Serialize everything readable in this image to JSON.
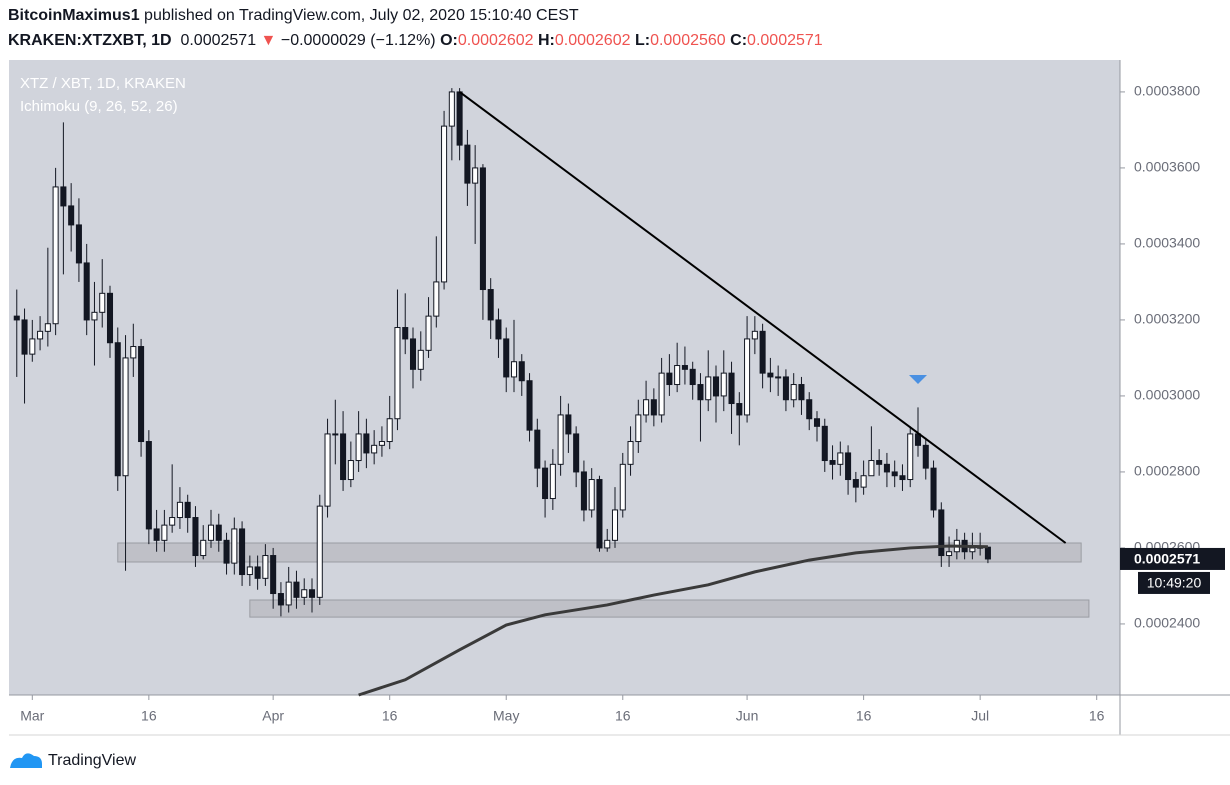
{
  "header": {
    "author": "BitcoinMaximus1",
    "published": "published on TradingView.com, July 02, 2020 15:10:40 CEST",
    "symbol": "KRAKEN:XTZXBT, 1D",
    "change": "−0.0000029 (−1.12%)",
    "ohlc": [
      {
        "label": "O:",
        "value": "0.0002602"
      },
      {
        "label": "H:",
        "value": "0.0002602"
      },
      {
        "label": "L:",
        "value": "0.0002560"
      },
      {
        "label": "C:",
        "value": "0.0002571"
      }
    ]
  },
  "footer": {
    "brand": "TradingView"
  },
  "chart_data": {
    "type": "candlestick",
    "title": "XTZ / XBT, 1D, KRAKEN",
    "subtitle": "Ichimoku (9, 26, 52, 26)",
    "up_color": "#ffffff",
    "down_color": "#131722",
    "background": "#d1d4dc",
    "x": [
      "2020-02-28",
      "2020-02-29",
      "2020-03-01",
      "2020-03-02",
      "2020-03-03",
      "2020-03-04",
      "2020-03-05",
      "2020-03-06",
      "2020-03-07",
      "2020-03-08",
      "2020-03-09",
      "2020-03-10",
      "2020-03-11",
      "2020-03-12",
      "2020-03-13",
      "2020-03-14",
      "2020-03-15",
      "2020-03-16",
      "2020-03-17",
      "2020-03-18",
      "2020-03-19",
      "2020-03-20",
      "2020-03-21",
      "2020-03-22",
      "2020-03-23",
      "2020-03-24",
      "2020-03-25",
      "2020-03-26",
      "2020-03-27",
      "2020-03-28",
      "2020-03-29",
      "2020-03-30",
      "2020-03-31",
      "2020-04-01",
      "2020-04-02",
      "2020-04-03",
      "2020-04-04",
      "2020-04-05",
      "2020-04-06",
      "2020-04-07",
      "2020-04-08",
      "2020-04-09",
      "2020-04-10",
      "2020-04-11",
      "2020-04-12",
      "2020-04-13",
      "2020-04-14",
      "2020-04-15",
      "2020-04-16",
      "2020-04-17",
      "2020-04-18",
      "2020-04-19",
      "2020-04-20",
      "2020-04-21",
      "2020-04-22",
      "2020-04-23",
      "2020-04-24",
      "2020-04-25",
      "2020-04-26",
      "2020-04-27",
      "2020-04-28",
      "2020-04-29",
      "2020-04-30",
      "2020-05-01",
      "2020-05-02",
      "2020-05-03",
      "2020-05-04",
      "2020-05-05",
      "2020-05-06",
      "2020-05-07",
      "2020-05-08",
      "2020-05-09",
      "2020-05-10",
      "2020-05-11",
      "2020-05-12",
      "2020-05-13",
      "2020-05-14",
      "2020-05-15",
      "2020-05-16",
      "2020-05-17",
      "2020-05-18",
      "2020-05-19",
      "2020-05-20",
      "2020-05-21",
      "2020-05-22",
      "2020-05-23",
      "2020-05-24",
      "2020-05-25",
      "2020-05-26",
      "2020-05-27",
      "2020-05-28",
      "2020-05-29",
      "2020-05-30",
      "2020-05-31",
      "2020-06-01",
      "2020-06-02",
      "2020-06-03",
      "2020-06-04",
      "2020-06-05",
      "2020-06-06",
      "2020-06-07",
      "2020-06-08",
      "2020-06-09",
      "2020-06-10",
      "2020-06-11",
      "2020-06-12",
      "2020-06-13",
      "2020-06-14",
      "2020-06-15",
      "2020-06-16",
      "2020-06-17",
      "2020-06-18",
      "2020-06-19",
      "2020-06-20",
      "2020-06-21",
      "2020-06-22",
      "2020-06-23",
      "2020-06-24",
      "2020-06-25",
      "2020-06-26",
      "2020-06-27",
      "2020-06-28",
      "2020-06-29",
      "2020-06-30",
      "2020-07-01",
      "2020-07-02"
    ],
    "open": [
      0.000321,
      0.00032,
      0.000311,
      0.000315,
      0.000317,
      0.000319,
      0.000355,
      0.00035,
      0.000345,
      0.000335,
      0.00032,
      0.000322,
      0.000327,
      0.000314,
      0.000279,
      0.00031,
      0.000313,
      0.000288,
      0.000265,
      0.000262,
      0.000266,
      0.000268,
      0.000272,
      0.000268,
      0.000258,
      0.000262,
      0.000266,
      0.000262,
      0.000256,
      0.000265,
      0.000253,
      0.000255,
      0.000252,
      0.000258,
      0.000248,
      0.000245,
      0.000251,
      0.000247,
      0.000249,
      0.000247,
      0.000271,
      0.00029,
      0.00029,
      0.000278,
      0.000283,
      0.00029,
      0.000285,
      0.000287,
      0.000288,
      0.000294,
      0.000318,
      0.000315,
      0.000307,
      0.000312,
      0.000321,
      0.00033,
      0.000371,
      0.00038,
      0.000366,
      0.000356,
      0.00036,
      0.000328,
      0.00032,
      0.000315,
      0.000305,
      0.000309,
      0.000304,
      0.000291,
      0.000281,
      0.000273,
      0.000282,
      0.000295,
      0.00029,
      0.00028,
      0.00027,
      0.000278,
      0.00026,
      0.000262,
      0.00027,
      0.000282,
      0.000288,
      0.000295,
      0.000299,
      0.000295,
      0.000306,
      0.000303,
      0.000308,
      0.000307,
      0.000303,
      0.000299,
      0.000305,
      0.0003,
      0.000306,
      0.000298,
      0.000295,
      0.000315,
      0.000317,
      0.000306,
      0.000305,
      0.000305,
      0.000299,
      0.000303,
      0.000299,
      0.000294,
      0.000292,
      0.000283,
      0.000282,
      0.000285,
      0.000278,
      0.000276,
      0.000279,
      0.000283,
      0.000282,
      0.00028,
      0.000279,
      0.000278,
      0.00029,
      0.000287,
      0.000281,
      0.00027,
      0.000258,
      0.000259,
      0.000262,
      0.000259,
      0.00026,
      0.0002602
    ],
    "high": [
      0.000328,
      0.000323,
      0.00032,
      0.000321,
      0.000339,
      0.00036,
      0.000372,
      0.000356,
      0.000352,
      0.00034,
      0.00033,
      0.000336,
      0.000329,
      0.000318,
      0.000316,
      0.000319,
      0.000315,
      0.000291,
      0.00027,
      0.00027,
      0.000282,
      0.000276,
      0.000274,
      0.000271,
      0.000266,
      0.00027,
      0.000269,
      0.000264,
      0.000268,
      0.000267,
      0.000258,
      0.000258,
      0.000261,
      0.00026,
      0.000251,
      0.000255,
      0.000254,
      0.000252,
      0.000252,
      0.000274,
      0.000294,
      0.000299,
      0.000296,
      0.000288,
      0.000296,
      0.000294,
      0.000291,
      0.000292,
      0.0003,
      0.000328,
      0.000327,
      0.000318,
      0.000317,
      0.000326,
      0.000342,
      0.000375,
      0.000381,
      0.000381,
      0.00037,
      0.000366,
      0.000361,
      0.000331,
      0.000323,
      0.000318,
      0.00032,
      0.000311,
      0.000306,
      0.000294,
      0.000283,
      0.000286,
      0.0003,
      0.000298,
      0.000292,
      0.000283,
      0.000281,
      0.000279,
      0.000265,
      0.000276,
      0.000285,
      0.000292,
      0.000299,
      0.000304,
      0.000302,
      0.00031,
      0.000311,
      0.000314,
      0.000313,
      0.000309,
      0.000306,
      0.000312,
      0.000308,
      0.000312,
      0.000309,
      0.000301,
      0.000321,
      0.000321,
      0.000319,
      0.00031,
      0.000308,
      0.000307,
      0.000306,
      0.000305,
      0.000301,
      0.000296,
      0.000294,
      0.000287,
      0.000288,
      0.000287,
      0.00028,
      0.000283,
      0.000292,
      0.000286,
      0.000285,
      0.000283,
      0.000282,
      0.000292,
      0.000297,
      0.000289,
      0.000283,
      0.000272,
      0.000263,
      0.000265,
      0.000264,
      0.000264,
      0.000264,
      0.0002602
    ],
    "low": [
      0.000305,
      0.000298,
      0.000309,
      0.000312,
      0.000313,
      0.000316,
      0.000332,
      0.000338,
      0.00033,
      0.000316,
      0.000308,
      0.000318,
      0.00031,
      0.000275,
      0.000254,
      0.000305,
      0.000284,
      0.000261,
      0.000259,
      0.000259,
      0.000264,
      0.000265,
      0.000264,
      0.000255,
      0.000257,
      0.00026,
      0.000259,
      0.000253,
      0.000253,
      0.00025,
      0.00025,
      0.000249,
      0.00025,
      0.000244,
      0.000242,
      0.000243,
      0.000244,
      0.000245,
      0.000243,
      0.000245,
      0.000268,
      0.000282,
      0.000275,
      0.000276,
      0.00028,
      0.000281,
      0.000282,
      0.000284,
      0.000286,
      0.000291,
      0.000311,
      0.000302,
      0.000304,
      0.00031,
      0.000318,
      0.000328,
      0.000362,
      0.000362,
      0.00035,
      0.00034,
      0.00032,
      0.000315,
      0.00031,
      0.000301,
      0.000301,
      0.0003,
      0.000288,
      0.000276,
      0.000268,
      0.00027,
      0.000279,
      0.000285,
      0.000276,
      0.000267,
      0.000268,
      0.000259,
      0.000259,
      0.00026,
      0.000268,
      0.000279,
      0.000285,
      0.000293,
      0.000292,
      0.000293,
      0.0003,
      0.000301,
      0.000303,
      0.000299,
      0.000288,
      0.000296,
      0.000293,
      0.000296,
      0.00029,
      0.000287,
      0.000293,
      0.000311,
      0.000302,
      0.000301,
      0.0003,
      0.000296,
      0.000297,
      0.000295,
      0.000291,
      0.000288,
      0.00028,
      0.000278,
      0.000279,
      0.000274,
      0.000272,
      0.000274,
      0.000279,
      0.000279,
      0.000276,
      0.000276,
      0.000275,
      0.000276,
      0.000284,
      0.000278,
      0.000268,
      0.000255,
      0.000255,
      0.000257,
      0.000257,
      0.000257,
      0.000258,
      0.000256
    ],
    "close": [
      0.00032,
      0.000311,
      0.000315,
      0.000317,
      0.000319,
      0.000355,
      0.00035,
      0.000345,
      0.000335,
      0.00032,
      0.000322,
      0.000327,
      0.000314,
      0.000279,
      0.00031,
      0.000313,
      0.000288,
      0.000265,
      0.000262,
      0.000266,
      0.000268,
      0.000272,
      0.000268,
      0.000258,
      0.000262,
      0.000266,
      0.000262,
      0.000256,
      0.000265,
      0.000253,
      0.000255,
      0.000252,
      0.000258,
      0.000248,
      0.000245,
      0.000251,
      0.000247,
      0.000249,
      0.000247,
      0.000271,
      0.00029,
      0.00029,
      0.000278,
      0.000283,
      0.00029,
      0.000285,
      0.000287,
      0.000288,
      0.000294,
      0.000318,
      0.000315,
      0.000307,
      0.000312,
      0.000321,
      0.00033,
      0.000371,
      0.00038,
      0.000366,
      0.000356,
      0.00036,
      0.000328,
      0.00032,
      0.000315,
      0.000305,
      0.000309,
      0.000304,
      0.000291,
      0.000281,
      0.000273,
      0.000282,
      0.000295,
      0.00029,
      0.00028,
      0.00027,
      0.000278,
      0.00026,
      0.000262,
      0.00027,
      0.000282,
      0.000288,
      0.000295,
      0.000299,
      0.000295,
      0.000306,
      0.000303,
      0.000308,
      0.000307,
      0.000303,
      0.000299,
      0.000305,
      0.0003,
      0.000306,
      0.000298,
      0.000295,
      0.000315,
      0.000317,
      0.000306,
      0.000305,
      0.000305,
      0.000299,
      0.000303,
      0.000299,
      0.000294,
      0.000292,
      0.000283,
      0.000282,
      0.000285,
      0.000278,
      0.000276,
      0.000279,
      0.000283,
      0.000282,
      0.00028,
      0.000279,
      0.000278,
      0.00029,
      0.000287,
      0.000281,
      0.00027,
      0.000258,
      0.000259,
      0.000262,
      0.000259,
      0.00026,
      0.0002602,
      0.0002571
    ],
    "countdown": "10:49:20",
    "moving_average": {
      "color": "#3a3a3a",
      "x": [
        "2020-04-12",
        "2020-04-18",
        "2020-04-25",
        "2020-05-01",
        "2020-05-06",
        "2020-05-14",
        "2020-05-20",
        "2020-05-27",
        "2020-06-02",
        "2020-06-09",
        "2020-06-15",
        "2020-06-22",
        "2020-06-27",
        "2020-07-02"
      ],
      "values": [
        0.0002213,
        0.0002253,
        0.0002332,
        0.0002397,
        0.0002424,
        0.000245,
        0.0002476,
        0.0002503,
        0.0002537,
        0.0002568,
        0.0002587,
        0.00026,
        0.0002605,
        0.0002603
      ]
    },
    "zones": [
      {
        "x": [
          "2020-03-12",
          "2020-07-14"
        ],
        "y": [
          0.0002563,
          0.0002613
        ]
      },
      {
        "x": [
          "2020-03-29",
          "2020-07-15"
        ],
        "y": [
          0.0002418,
          0.0002463
        ]
      }
    ],
    "zone_color": "#b8bac0",
    "trendline": {
      "x": [
        "2020-04-25",
        "2020-07-12"
      ],
      "values": [
        0.00038,
        0.0002613
      ]
    },
    "marker": {
      "x": "2020-06-23",
      "value": 0.0003042,
      "color": "#4a90e2"
    },
    "xlim": [
      "2020-02-27",
      "2020-07-19"
    ],
    "xticks": [
      {
        "value": "2020-03-01",
        "label": "Mar"
      },
      {
        "value": "2020-03-16",
        "label": "16"
      },
      {
        "value": "2020-04-01",
        "label": "Apr"
      },
      {
        "value": "2020-04-16",
        "label": "16"
      },
      {
        "value": "2020-05-01",
        "label": "May"
      },
      {
        "value": "2020-05-16",
        "label": "16"
      },
      {
        "value": "2020-06-01",
        "label": "Jun"
      },
      {
        "value": "2020-06-16",
        "label": "16"
      },
      {
        "value": "2020-07-01",
        "label": "Jul"
      },
      {
        "value": "2020-07-16",
        "label": "16"
      }
    ],
    "ylim": [
      0.0002213,
      0.0003884
    ],
    "yticks": [
      {
        "value": 0.00024,
        "label": "0.0002400"
      },
      {
        "value": 0.00026,
        "label": "0.0002600"
      },
      {
        "value": 0.00028,
        "label": "0.0002800"
      },
      {
        "value": 0.0003,
        "label": "0.0003000"
      },
      {
        "value": 0.00032,
        "label": "0.0003200"
      },
      {
        "value": 0.00034,
        "label": "0.0003400"
      },
      {
        "value": 0.00036,
        "label": "0.0003600"
      },
      {
        "value": 0.00038,
        "label": "0.0003800"
      }
    ]
  }
}
